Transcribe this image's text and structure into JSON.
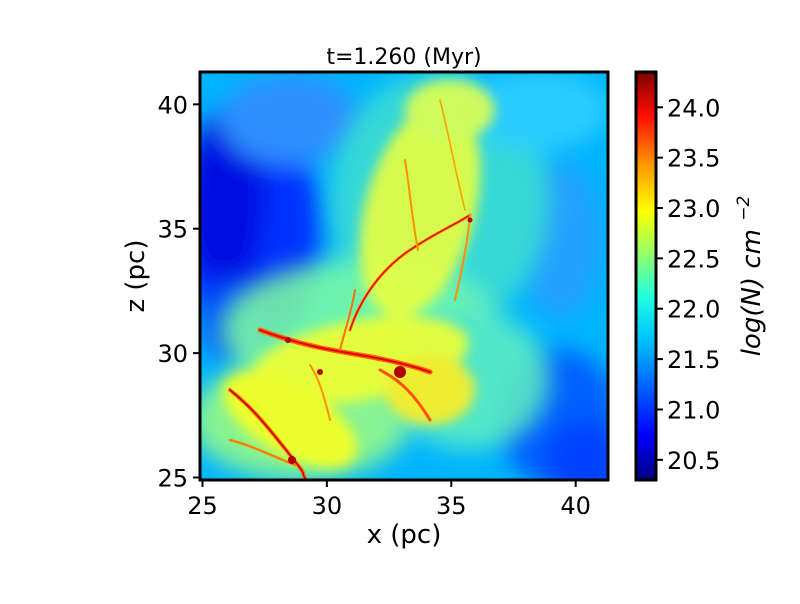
{
  "chart_data": {
    "type": "heatmap",
    "title": "t=1.260 (Myr)",
    "xlabel": "x (pc)",
    "ylabel": "z (pc)",
    "xlim": [
      24.9,
      41.3
    ],
    "ylim": [
      24.9,
      41.3
    ],
    "x_ticks": [
      25,
      30,
      35,
      40
    ],
    "y_ticks": [
      25,
      30,
      35,
      40
    ],
    "colorbar": {
      "label_main": "log(N) cm",
      "label_exponent": "−2",
      "range": [
        20.3,
        24.35
      ],
      "ticks": [
        "20.5",
        "21.0",
        "21.5",
        "22.0",
        "22.5",
        "23.0",
        "23.5",
        "24.0"
      ],
      "colormap": "jet"
    },
    "grid": false,
    "description_values": {
      "background_level": 21.5,
      "filament_peak": 24.0
    }
  },
  "colors": {
    "jet_stops": [
      "#00007f",
      "#0000ff",
      "#007fff",
      "#00ffff",
      "#7fff7f",
      "#ffff00",
      "#ff7f00",
      "#ff0000",
      "#7f0000"
    ]
  }
}
